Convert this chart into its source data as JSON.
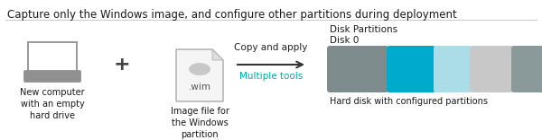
{
  "title": "Capture only the Windows image, and configure other partitions during deployment",
  "title_color": "#1a1a1a",
  "title_fontsize": 8.5,
  "bg_color": "#ffffff",
  "computer_label": "New computer\nwith an empty\nhard drive",
  "plus_symbol": "+",
  "wim_label": "Image file for\nthe Windows\npartition",
  "wim_text": ".wim",
  "arrow_label1": "Copy and apply",
  "arrow_label2": "Multiple tools",
  "arrow_label1_color": "#222222",
  "arrow_label2_color": "#00aaaa",
  "disk_title1": "Disk Partitions",
  "disk_title2": "Disk 0",
  "disk_label": "Hard disk with configured partitions",
  "disk_label_color": "#1a1a1a",
  "partition_colors": [
    "#7f8c8d",
    "#00aacc",
    "#aadde8",
    "#c8c8c8",
    "#8a9a9a"
  ],
  "computer_color": "#909090",
  "wim_border_color": "#aaaaaa",
  "wim_bg_color": "#f5f5f5",
  "wim_oval_color": "#c8c8c8",
  "label_color": "#1a1a1a",
  "label_fontsize": 7.0,
  "disk_titles_color": "#1a1a1a",
  "disk_titles_fontsize": 7.5,
  "title_line_color": "#cccccc",
  "arrow_color": "#333333"
}
